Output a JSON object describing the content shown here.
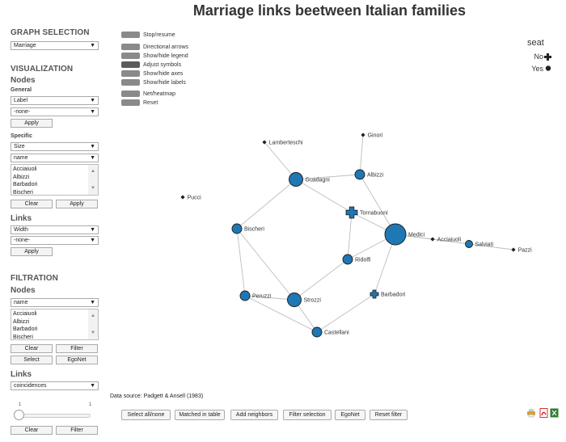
{
  "title": "Marriage links beetween Italian families",
  "panel": {
    "graph_selection": "GRAPH SELECTION",
    "graph_value": "Marriage",
    "visualization": "VISUALIZATION",
    "nodes": "Nodes",
    "general": "General",
    "general_select1": "Label",
    "general_select2": "-none-",
    "apply": "Apply",
    "specific": "Specific",
    "specific_select1": "Size",
    "specific_select2": "name",
    "family_list": [
      "Acciaiuoli",
      "Albizzi",
      "Barbadori",
      "Bischeri"
    ],
    "clear": "Clear",
    "links": "Links",
    "links_select1": "Width",
    "links_select2": "-none-",
    "filtration": "FILTRATION",
    "filtration_nodes": "Nodes",
    "filtration_select": "name",
    "filtration_list": [
      "Acciaiuoli",
      "Albizzi",
      "Barbadori",
      "Bischeri"
    ],
    "filter": "Filter",
    "select": "Select",
    "egonet": "EgoNet",
    "filtration_links": "Links",
    "links_filter_select": "coincidences",
    "slider_min": "1",
    "slider_max": "1"
  },
  "controls": [
    "Stop/resume",
    "Directional arrows",
    "Show/hide legend",
    "Adjust symbols",
    "Show/hide axes",
    "Show/hide labels",
    "Net/heatmap",
    "Reset"
  ],
  "legend": {
    "title": "seat",
    "items": [
      "No",
      "Yes"
    ]
  },
  "graph": {
    "nodes": [
      {
        "name": "Medici",
        "shape": "circle",
        "size": 3
      },
      {
        "name": "Guadagni",
        "shape": "circle",
        "size": 2
      },
      {
        "name": "Strozzi",
        "shape": "circle",
        "size": 2
      },
      {
        "name": "Albizzi",
        "shape": "circle",
        "size": 1
      },
      {
        "name": "Bischeri",
        "shape": "circle",
        "size": 1
      },
      {
        "name": "Peruzzi",
        "shape": "circle",
        "size": 1
      },
      {
        "name": "Castellani",
        "shape": "circle",
        "size": 1
      },
      {
        "name": "Ridolfi",
        "shape": "circle",
        "size": 1
      },
      {
        "name": "Salviati",
        "shape": "circle",
        "size": 0.5
      },
      {
        "name": "Tornabuoni",
        "shape": "cross",
        "size": 1
      },
      {
        "name": "Barbadori",
        "shape": "cross",
        "size": 0.7
      },
      {
        "name": "Acciaiuoli",
        "shape": "diamond",
        "size": 0
      },
      {
        "name": "Pazzi",
        "shape": "diamond",
        "size": 0
      },
      {
        "name": "Ginori",
        "shape": "diamond",
        "size": 0
      },
      {
        "name": "Lamberteschi",
        "shape": "diamond",
        "size": 0
      },
      {
        "name": "Pucci",
        "shape": "diamond",
        "size": 0
      }
    ],
    "edges": [
      [
        "Medici",
        "Acciaiuoli"
      ],
      [
        "Medici",
        "Albizzi"
      ],
      [
        "Medici",
        "Tornabuoni"
      ],
      [
        "Medici",
        "Ridolfi"
      ],
      [
        "Medici",
        "Barbadori"
      ],
      [
        "Medici",
        "Salviati"
      ],
      [
        "Salviati",
        "Pazzi"
      ],
      [
        "Albizzi",
        "Ginori"
      ],
      [
        "Albizzi",
        "Guadagni"
      ],
      [
        "Guadagni",
        "Lamberteschi"
      ],
      [
        "Guadagni",
        "Tornabuoni"
      ],
      [
        "Guadagni",
        "Bischeri"
      ],
      [
        "Tornabuoni",
        "Ridolfi"
      ],
      [
        "Ridolfi",
        "Strozzi"
      ],
      [
        "Strozzi",
        "Bischeri"
      ],
      [
        "Strozzi",
        "Peruzzi"
      ],
      [
        "Strozzi",
        "Castellani"
      ],
      [
        "Bischeri",
        "Peruzzi"
      ],
      [
        "Peruzzi",
        "Castellani"
      ],
      [
        "Castellani",
        "Barbadori"
      ]
    ]
  },
  "source": "Data source: Padgett & Ansell (1983)",
  "bottom_buttons": [
    "Select all/none",
    "Matched in table",
    "Add neighbors",
    "Filter selection",
    "EgoNet",
    "Reset filter"
  ],
  "export_icons": [
    "print-icon",
    "pdf-icon",
    "excel-icon"
  ]
}
